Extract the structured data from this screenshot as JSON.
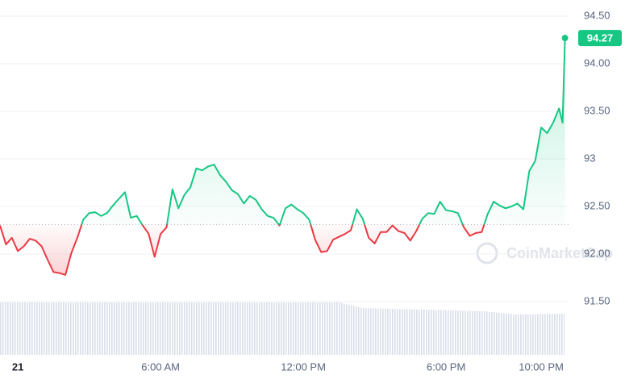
{
  "chart_data": {
    "type": "line",
    "x": [
      -0.75,
      -0.5,
      -0.25,
      0,
      0.25,
      0.5,
      0.75,
      1,
      1.25,
      1.5,
      1.75,
      2,
      2.25,
      2.5,
      2.75,
      3,
      3.25,
      3.5,
      3.75,
      4,
      4.25,
      4.5,
      4.75,
      5,
      5.25,
      5.5,
      5.75,
      6,
      6.25,
      6.5,
      6.75,
      7,
      7.25,
      7.5,
      7.75,
      8,
      8.25,
      8.5,
      8.75,
      9,
      9.25,
      9.5,
      9.75,
      10,
      10.25,
      10.5,
      10.75,
      11,
      11.25,
      11.5,
      11.75,
      12,
      12.25,
      12.5,
      12.75,
      13,
      13.25,
      13.5,
      13.75,
      14,
      14.25,
      14.5,
      14.75,
      15,
      15.25,
      15.5,
      15.75,
      16,
      16.25,
      16.5,
      16.75,
      17,
      17.25,
      17.5,
      17.75,
      18,
      18.25,
      18.5,
      18.75,
      19,
      19.25,
      19.5,
      19.75,
      20,
      20.25,
      20.5,
      20.75,
      21,
      21.25,
      21.5,
      21.75,
      22,
      22.25,
      22.5,
      22.75,
      22.9,
      23
    ],
    "values": [
      92.3,
      92.1,
      92.17,
      92.03,
      92.08,
      92.16,
      92.14,
      92.08,
      91.94,
      91.81,
      91.8,
      91.78,
      92.01,
      92.17,
      92.36,
      92.43,
      92.44,
      92.4,
      92.43,
      92.51,
      92.58,
      92.65,
      92.38,
      92.4,
      92.3,
      92.21,
      91.97,
      92.21,
      92.28,
      92.68,
      92.48,
      92.62,
      92.7,
      92.9,
      92.88,
      92.92,
      92.94,
      92.83,
      92.76,
      92.67,
      92.63,
      92.53,
      92.61,
      92.57,
      92.47,
      92.4,
      92.38,
      92.3,
      92.48,
      92.52,
      92.47,
      92.43,
      92.36,
      92.15,
      92.02,
      92.03,
      92.15,
      92.18,
      92.21,
      92.25,
      92.47,
      92.37,
      92.17,
      92.11,
      92.23,
      92.23,
      92.3,
      92.24,
      92.22,
      92.14,
      92.24,
      92.37,
      92.43,
      92.42,
      92.55,
      92.46,
      92.45,
      92.43,
      92.28,
      92.19,
      92.22,
      92.23,
      92.42,
      92.55,
      92.51,
      92.48,
      92.5,
      92.53,
      92.47,
      92.87,
      92.98,
      93.33,
      93.27,
      93.38,
      93.53,
      93.38,
      94.27
    ],
    "baseline": 92.31,
    "xlim": [
      -0.75,
      23.15
    ],
    "ylim": [
      90.94,
      94.67
    ],
    "yticks": [
      {
        "value": 91.5,
        "label": "91.50"
      },
      {
        "value": 92,
        "label": "92.00"
      },
      {
        "value": 92.5,
        "label": "92.50"
      },
      93,
      {
        "value": 93.5,
        "label": "93.50"
      },
      {
        "value": 94,
        "label": "94.00"
      },
      {
        "value": 94.5,
        "label": "94.50"
      }
    ],
    "xticks": [
      {
        "value": 0,
        "label": "21"
      },
      {
        "value": 6,
        "label": "6:00 AM"
      },
      {
        "value": 12,
        "label": "12:00 PM"
      },
      {
        "value": 18,
        "label": "6:00 PM"
      },
      {
        "value": 22,
        "label": "10:00 PM"
      }
    ],
    "grid": true,
    "colors": {
      "up": "#16c784",
      "down": "#ea3943"
    },
    "watermark": "CoinMarketCap"
  }
}
